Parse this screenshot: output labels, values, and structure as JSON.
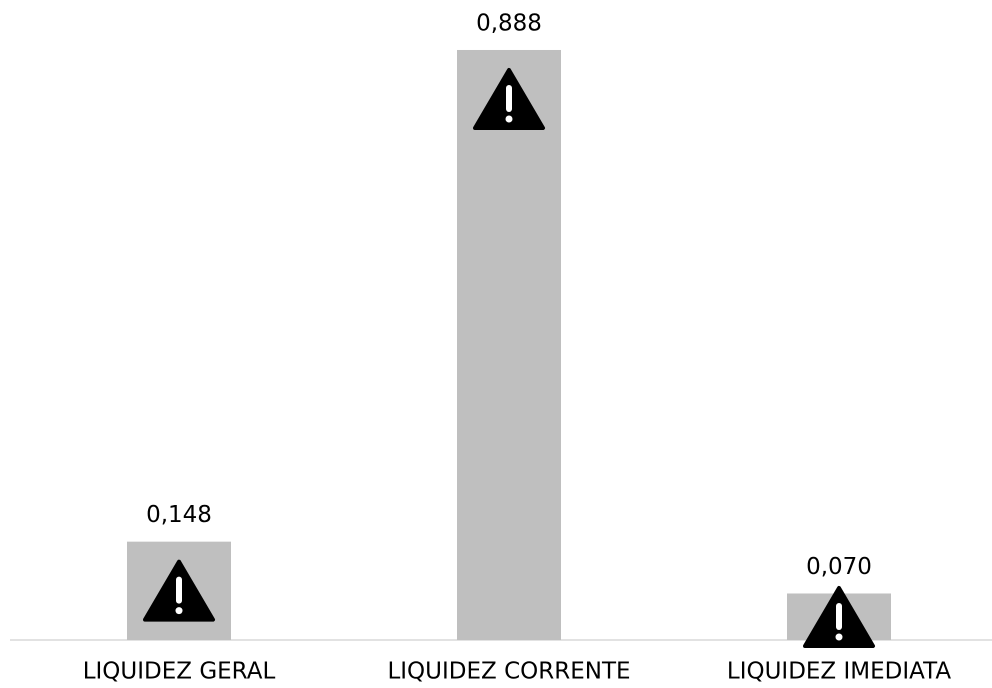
{
  "chart_data": {
    "type": "bar",
    "categories": [
      "LIQUIDEZ GERAL",
      "LIQUIDEZ CORRENTE",
      "LIQUIDEZ IMEDIATA"
    ],
    "values": [
      0.148,
      0.888,
      0.07
    ],
    "value_labels": [
      "0,148",
      "0,888",
      "0,070"
    ],
    "color": "#bfbfbf",
    "ylim": [
      0,
      0.9
    ]
  }
}
